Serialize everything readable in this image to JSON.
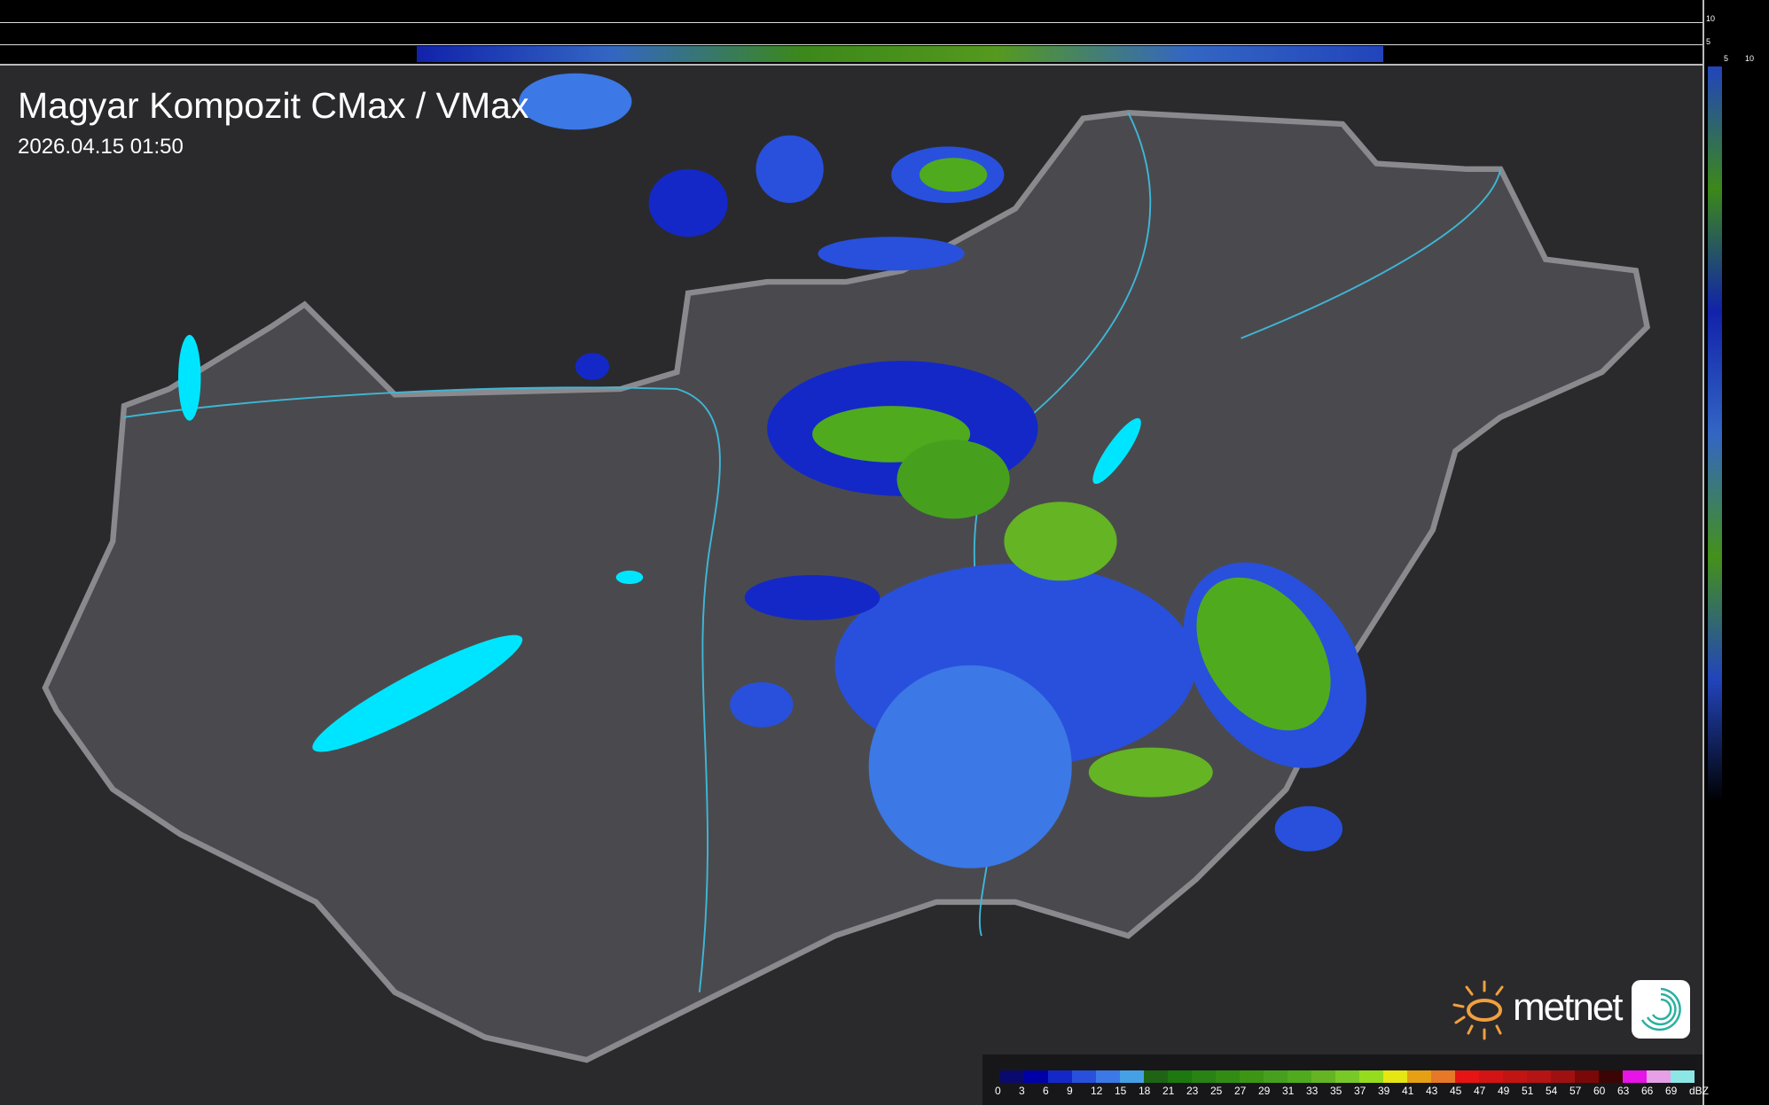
{
  "header": {
    "title": "Magyar Kompozit CMax / VMax",
    "timestamp": "2026.04.15 01:50"
  },
  "profile_axes": {
    "top_ticks": [
      "10",
      "5"
    ],
    "right_ticks": [
      "5",
      "10"
    ]
  },
  "logo": {
    "brand": "metnet",
    "icons": [
      "sun-logo-icon",
      "swirl-logo-icon"
    ]
  },
  "legend": {
    "unit": "dBZ",
    "labels": [
      "0",
      "3",
      "6",
      "9",
      "12",
      "15",
      "18",
      "21",
      "23",
      "25",
      "27",
      "29",
      "31",
      "33",
      "35",
      "37",
      "39",
      "41",
      "43",
      "45",
      "47",
      "49",
      "51",
      "54",
      "57",
      "60",
      "63",
      "66",
      "69"
    ],
    "colors": [
      "#0a0a6e",
      "#0000a8",
      "#1428c8",
      "#2850dc",
      "#3c78e6",
      "#46a0e6",
      "#1e6414",
      "#1e7810",
      "#288214",
      "#328c14",
      "#3c9614",
      "#46a01e",
      "#50aa1e",
      "#64b423",
      "#78c828",
      "#96dc1e",
      "#e6e614",
      "#e6a014",
      "#e67828",
      "#e61414",
      "#d21414",
      "#c31414",
      "#b41414",
      "#a01010",
      "#7a0808",
      "#3c0505",
      "#e614e6",
      "#e6a0e6",
      "#8ce6e6"
    ]
  },
  "colors": {
    "background": "#2a2a2c",
    "country": "#4a4a4e",
    "border": "#8a8a8e",
    "rivers": "#3fb6d6",
    "lakes": "#00e5ff"
  }
}
